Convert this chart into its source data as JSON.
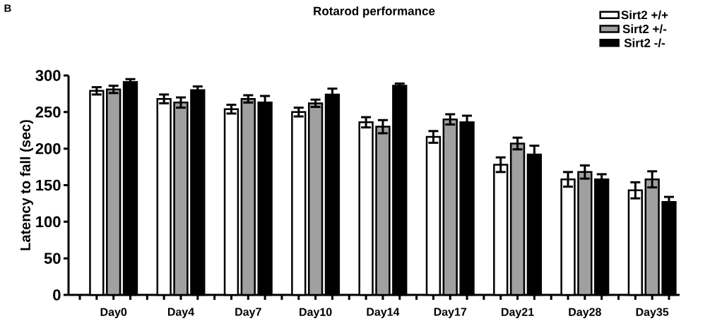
{
  "chart_data": {
    "type": "bar",
    "title": "Rotarod performance",
    "ylabel": "Latency to fall (sec)",
    "annotations": [
      "B"
    ],
    "categories": [
      "Day0",
      "Day4",
      "Day7",
      "Day10",
      "Day14",
      "Day17",
      "Day21",
      "Day28",
      "Day35"
    ],
    "series": [
      {
        "name": "Sirt2 +/+",
        "color": "#ffffff",
        "values": [
          279,
          268,
          254,
          250,
          236,
          216,
          178,
          158,
          143
        ],
        "errors": [
          5,
          6,
          6,
          6,
          7,
          8,
          10,
          10,
          11
        ]
      },
      {
        "name": "Sirt2 +/-",
        "color": "#a0a0a0",
        "values": [
          281,
          263,
          268,
          262,
          230,
          240,
          207,
          168,
          158
        ],
        "errors": [
          5,
          7,
          5,
          5,
          9,
          7,
          8,
          9,
          11
        ]
      },
      {
        "name": "Sirt2 -/-",
        "color": "#000000",
        "values": [
          291,
          280,
          263,
          274,
          286,
          236,
          192,
          158,
          127
        ],
        "errors": [
          4,
          5,
          9,
          8,
          3,
          9,
          12,
          7,
          7
        ]
      }
    ],
    "ylim": [
      0,
      300
    ],
    "yticks": [
      0,
      50,
      100,
      150,
      200,
      250,
      300
    ],
    "legend": "top right"
  }
}
